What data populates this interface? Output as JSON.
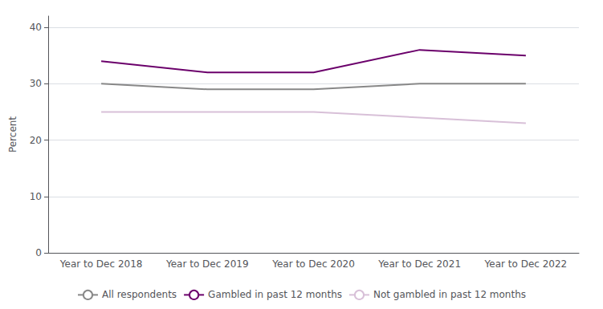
{
  "chart_data": {
    "type": "line",
    "ylabel": "Percent",
    "categories": [
      "Year to Dec 2018",
      "Year to Dec 2019",
      "Year to Dec 2020",
      "Year to Dec 2021",
      "Year to Dec 2022"
    ],
    "series": [
      {
        "name": "All respondents",
        "color": "#888888",
        "values": [
          30,
          29,
          29,
          30,
          30
        ]
      },
      {
        "name": "Gambled in past 12 months",
        "color": "#6B006B",
        "values": [
          34,
          32,
          32,
          36,
          35
        ]
      },
      {
        "name": "Not gambled in past 12 months",
        "color": "#D8C0D8",
        "values": [
          25,
          25,
          25,
          24,
          23
        ]
      }
    ],
    "ylim": [
      0,
      42
    ],
    "yticks": [
      0,
      10,
      20,
      30,
      40
    ],
    "grid": true,
    "legend": "bottom"
  }
}
